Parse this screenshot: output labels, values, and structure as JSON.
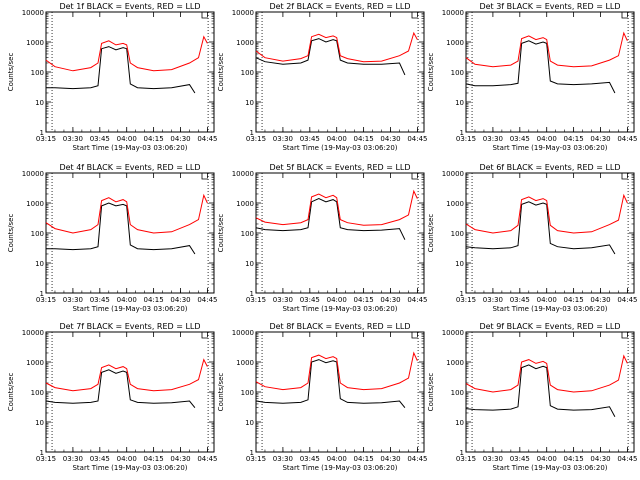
{
  "figure": {
    "xlabel": "Start Time (19-May-03 03:06:20)",
    "ylabel": "Counts/sec",
    "title_suffix": " BLACK = Events, RED = LLD",
    "x_ticks": [
      "03:15",
      "03:30",
      "03:45",
      "04:00",
      "04:15",
      "04:30",
      "04:45"
    ],
    "y_ticks": [
      "1",
      "10",
      "100",
      "1000",
      "10000"
    ],
    "xlim_minutes": [
      8.67,
      102.33
    ],
    "ylim": [
      1,
      10000
    ],
    "y_scale": "log",
    "colors": {
      "events": "#000000",
      "lld": "#ff0000"
    }
  },
  "chart_data": [
    {
      "type": "line",
      "title": "Det 1f BLACK = Events, RED = LLD",
      "series": [
        {
          "name": "Events",
          "color": "#000000",
          "x": [
            "03:15",
            "03:20",
            "03:30",
            "03:40",
            "03:44",
            "03:46",
            "03:50",
            "03:54",
            "03:58",
            "04:00",
            "04:02",
            "04:06",
            "04:15",
            "04:25",
            "04:35",
            "04:38"
          ],
          "values": [
            30,
            30,
            28,
            30,
            35,
            600,
            700,
            550,
            650,
            600,
            40,
            30,
            28,
            30,
            38,
            20
          ]
        },
        {
          "name": "LLD",
          "color": "#ff0000",
          "x": [
            "03:15",
            "03:20",
            "03:30",
            "03:40",
            "03:44",
            "03:46",
            "03:50",
            "03:54",
            "03:58",
            "04:00",
            "04:02",
            "04:06",
            "04:15",
            "04:25",
            "04:35",
            "04:40",
            "04:43",
            "04:45"
          ],
          "values": [
            250,
            150,
            110,
            140,
            200,
            900,
            1100,
            800,
            900,
            800,
            200,
            140,
            110,
            120,
            200,
            300,
            1500,
            900
          ]
        }
      ]
    },
    {
      "type": "line",
      "title": "Det 2f BLACK = Events, RED = LLD",
      "series": [
        {
          "name": "Events",
          "color": "#000000",
          "x": [
            "03:15",
            "03:20",
            "03:30",
            "03:40",
            "03:44",
            "03:46",
            "03:50",
            "03:54",
            "03:58",
            "04:00",
            "04:02",
            "04:06",
            "04:15",
            "04:25",
            "04:35",
            "04:38"
          ],
          "values": [
            300,
            220,
            180,
            200,
            250,
            1100,
            1300,
            1000,
            1200,
            1100,
            250,
            200,
            180,
            180,
            200,
            80
          ]
        },
        {
          "name": "LLD",
          "color": "#ff0000",
          "x": [
            "03:15",
            "03:20",
            "03:30",
            "03:40",
            "03:44",
            "03:46",
            "03:50",
            "03:54",
            "03:58",
            "04:00",
            "04:02",
            "04:06",
            "04:15",
            "04:25",
            "04:35",
            "04:40",
            "04:43",
            "04:45"
          ],
          "values": [
            500,
            300,
            230,
            280,
            350,
            1500,
            1800,
            1400,
            1600,
            1400,
            350,
            280,
            220,
            230,
            350,
            500,
            2000,
            1200
          ]
        }
      ]
    },
    {
      "type": "line",
      "title": "Det 3f BLACK = Events, RED = LLD",
      "series": [
        {
          "name": "Events",
          "color": "#000000",
          "x": [
            "03:15",
            "03:20",
            "03:30",
            "03:40",
            "03:44",
            "03:46",
            "03:50",
            "03:54",
            "03:58",
            "04:00",
            "04:02",
            "04:06",
            "04:15",
            "04:25",
            "04:35",
            "04:38"
          ],
          "values": [
            40,
            35,
            35,
            38,
            42,
            900,
            1100,
            850,
            1000,
            900,
            50,
            40,
            38,
            40,
            45,
            20
          ]
        },
        {
          "name": "LLD",
          "color": "#ff0000",
          "x": [
            "03:15",
            "03:20",
            "03:30",
            "03:40",
            "03:44",
            "03:46",
            "03:50",
            "03:54",
            "03:58",
            "04:00",
            "04:02",
            "04:06",
            "04:15",
            "04:25",
            "04:35",
            "04:40",
            "04:43",
            "04:45"
          ],
          "values": [
            300,
            180,
            150,
            170,
            230,
            1300,
            1600,
            1200,
            1400,
            1200,
            230,
            170,
            150,
            160,
            250,
            350,
            2000,
            1100
          ]
        }
      ]
    },
    {
      "type": "line",
      "title": "Det 4f BLACK = Events, RED = LLD",
      "series": [
        {
          "name": "Events",
          "color": "#000000",
          "x": [
            "03:15",
            "03:20",
            "03:30",
            "03:40",
            "03:44",
            "03:46",
            "03:50",
            "03:54",
            "03:58",
            "04:00",
            "04:02",
            "04:06",
            "04:15",
            "04:25",
            "04:35",
            "04:38"
          ],
          "values": [
            30,
            30,
            28,
            30,
            35,
            800,
            1000,
            800,
            900,
            800,
            40,
            30,
            28,
            30,
            38,
            20
          ]
        },
        {
          "name": "LLD",
          "color": "#ff0000",
          "x": [
            "03:15",
            "03:20",
            "03:30",
            "03:40",
            "03:44",
            "03:46",
            "03:50",
            "03:54",
            "03:58",
            "04:00",
            "04:02",
            "04:06",
            "04:15",
            "04:25",
            "04:35",
            "04:40",
            "04:43",
            "04:45"
          ],
          "values": [
            220,
            140,
            100,
            130,
            190,
            1200,
            1500,
            1100,
            1300,
            1100,
            190,
            130,
            100,
            110,
            190,
            280,
            1800,
            1000
          ]
        }
      ]
    },
    {
      "type": "line",
      "title": "Det 5f BLACK = Events, RED = LLD",
      "series": [
        {
          "name": "Events",
          "color": "#000000",
          "x": [
            "03:15",
            "03:20",
            "03:30",
            "03:40",
            "03:44",
            "03:46",
            "03:50",
            "03:54",
            "03:58",
            "04:00",
            "04:02",
            "04:06",
            "04:15",
            "04:25",
            "04:35",
            "04:38"
          ],
          "values": [
            150,
            130,
            120,
            130,
            150,
            1100,
            1400,
            1100,
            1300,
            1100,
            150,
            130,
            120,
            125,
            140,
            60
          ]
        },
        {
          "name": "LLD",
          "color": "#ff0000",
          "x": [
            "03:15",
            "03:20",
            "03:30",
            "03:40",
            "03:44",
            "03:46",
            "03:50",
            "03:54",
            "03:58",
            "04:00",
            "04:02",
            "04:06",
            "04:15",
            "04:25",
            "04:35",
            "04:40",
            "04:43",
            "04:45"
          ],
          "values": [
            320,
            230,
            190,
            220,
            280,
            1600,
            2000,
            1500,
            1800,
            1500,
            280,
            220,
            180,
            190,
            280,
            400,
            2500,
            1400
          ]
        }
      ]
    },
    {
      "type": "line",
      "title": "Det 6f BLACK = Events, RED = LLD",
      "series": [
        {
          "name": "Events",
          "color": "#000000",
          "x": [
            "03:15",
            "03:20",
            "03:30",
            "03:40",
            "03:44",
            "03:46",
            "03:50",
            "03:54",
            "03:58",
            "04:00",
            "04:02",
            "04:06",
            "04:15",
            "04:25",
            "04:35",
            "04:38"
          ],
          "values": [
            35,
            32,
            30,
            32,
            38,
            900,
            1100,
            850,
            1000,
            900,
            45,
            35,
            30,
            32,
            40,
            20
          ]
        },
        {
          "name": "LLD",
          "color": "#ff0000",
          "x": [
            "03:15",
            "03:20",
            "03:30",
            "03:40",
            "03:44",
            "03:46",
            "03:50",
            "03:54",
            "03:58",
            "04:00",
            "04:02",
            "04:06",
            "04:15",
            "04:25",
            "04:35",
            "04:40",
            "04:43",
            "04:45"
          ],
          "values": [
            200,
            130,
            100,
            120,
            180,
            1300,
            1600,
            1200,
            1400,
            1200,
            180,
            120,
            100,
            110,
            190,
            270,
            1800,
            1000
          ]
        }
      ]
    },
    {
      "type": "line",
      "title": "Det 7f BLACK = Events, RED = LLD",
      "series": [
        {
          "name": "Events",
          "color": "#000000",
          "x": [
            "03:15",
            "03:20",
            "03:30",
            "03:40",
            "03:44",
            "03:46",
            "03:50",
            "03:54",
            "03:58",
            "04:00",
            "04:02",
            "04:06",
            "04:15",
            "04:25",
            "04:35",
            "04:38"
          ],
          "values": [
            50,
            45,
            42,
            45,
            50,
            450,
            550,
            420,
            500,
            450,
            55,
            45,
            42,
            44,
            50,
            30
          ]
        },
        {
          "name": "LLD",
          "color": "#ff0000",
          "x": [
            "03:15",
            "03:20",
            "03:30",
            "03:40",
            "03:44",
            "03:46",
            "03:50",
            "03:54",
            "03:58",
            "04:00",
            "04:02",
            "04:06",
            "04:15",
            "04:25",
            "04:35",
            "04:40",
            "04:43",
            "04:45"
          ],
          "values": [
            200,
            140,
            110,
            130,
            180,
            650,
            800,
            600,
            700,
            600,
            180,
            130,
            110,
            120,
            180,
            260,
            1200,
            700
          ]
        }
      ]
    },
    {
      "type": "line",
      "title": "Det 8f BLACK = Events, RED = LLD",
      "series": [
        {
          "name": "Events",
          "color": "#000000",
          "x": [
            "03:15",
            "03:20",
            "03:30",
            "03:40",
            "03:44",
            "03:46",
            "03:50",
            "03:54",
            "03:58",
            "04:00",
            "04:02",
            "04:06",
            "04:15",
            "04:25",
            "04:35",
            "04:38"
          ],
          "values": [
            50,
            45,
            42,
            45,
            55,
            1000,
            1200,
            950,
            1100,
            1000,
            60,
            45,
            42,
            44,
            50,
            30
          ]
        },
        {
          "name": "LLD",
          "color": "#ff0000",
          "x": [
            "03:15",
            "03:20",
            "03:30",
            "03:40",
            "03:44",
            "03:46",
            "03:50",
            "03:54",
            "03:58",
            "04:00",
            "04:02",
            "04:06",
            "04:15",
            "04:25",
            "04:35",
            "04:40",
            "04:43",
            "04:45"
          ],
          "values": [
            220,
            150,
            120,
            140,
            200,
            1400,
            1700,
            1300,
            1500,
            1300,
            200,
            140,
            120,
            130,
            200,
            290,
            2000,
            1100
          ]
        }
      ]
    },
    {
      "type": "line",
      "title": "Det 9f BLACK = Events, RED = LLD",
      "series": [
        {
          "name": "Events",
          "color": "#000000",
          "x": [
            "03:15",
            "03:20",
            "03:30",
            "03:40",
            "03:44",
            "03:46",
            "03:50",
            "03:54",
            "03:58",
            "04:00",
            "04:02",
            "04:06",
            "04:15",
            "04:25",
            "04:35",
            "04:38"
          ],
          "values": [
            28,
            26,
            25,
            27,
            32,
            650,
            800,
            600,
            720,
            650,
            35,
            27,
            25,
            26,
            32,
            15
          ]
        },
        {
          "name": "LLD",
          "color": "#ff0000",
          "x": [
            "03:15",
            "03:20",
            "03:30",
            "03:40",
            "03:44",
            "03:46",
            "03:50",
            "03:54",
            "03:58",
            "04:00",
            "04:02",
            "04:06",
            "04:15",
            "04:25",
            "04:35",
            "04:40",
            "04:43",
            "04:45"
          ],
          "values": [
            190,
            130,
            100,
            120,
            170,
            1000,
            1200,
            900,
            1050,
            900,
            170,
            120,
            100,
            110,
            170,
            250,
            1600,
            900
          ]
        }
      ]
    }
  ]
}
